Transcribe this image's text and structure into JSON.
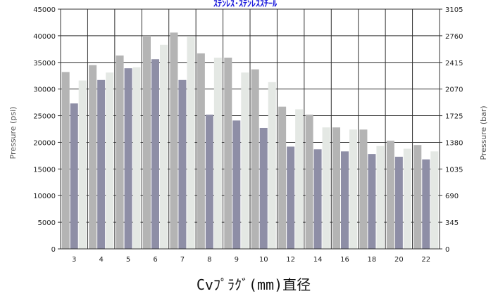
{
  "chart_data": {
    "type": "bar",
    "title": "ｽﾃﾝﾚｽ･ｽﾃﾝﾚｽｽﾁｰﾙ",
    "title_color": "#1a1adc",
    "xlabel": "Cvﾌﾟﾗｸﾞ(mm)直径",
    "ylabel_left": "Pressure (psi)",
    "ylabel_right": "Pressure (bar)",
    "categories": [
      "3",
      "4",
      "5",
      "6",
      "7",
      "8",
      "9",
      "10",
      "12",
      "14",
      "16",
      "18",
      "20",
      "22"
    ],
    "series": [
      {
        "color": "#b4b4b4",
        "values": [
          33200,
          34500,
          36300,
          40000,
          40600,
          36700,
          35900,
          33700,
          26700,
          25200,
          22800,
          22400,
          20300,
          19500
        ]
      },
      {
        "color": "#8e8ea6",
        "values": [
          27300,
          31700,
          33900,
          35600,
          31700,
          25200,
          24100,
          22700,
          19200,
          18700,
          18300,
          17800,
          17300,
          16800
        ]
      },
      {
        "color": "#e4e8e4",
        "values": [
          31600,
          33100,
          34100,
          38300,
          39800,
          35900,
          33100,
          31300,
          26200,
          22800,
          22400,
          19300,
          18800,
          18300
        ]
      }
    ],
    "y_left": {
      "min": 0,
      "max": 45000,
      "ticks": [
        "0",
        "5000",
        "10000",
        "15000",
        "20000",
        "25000",
        "30000",
        "35000",
        "40000",
        "45000"
      ]
    },
    "y_right": {
      "ticks": [
        "0",
        "345",
        "690",
        "1035",
        "1380",
        "1725",
        "2070",
        "2415",
        "2760",
        "3105"
      ]
    },
    "grid": true,
    "legend": "none"
  }
}
